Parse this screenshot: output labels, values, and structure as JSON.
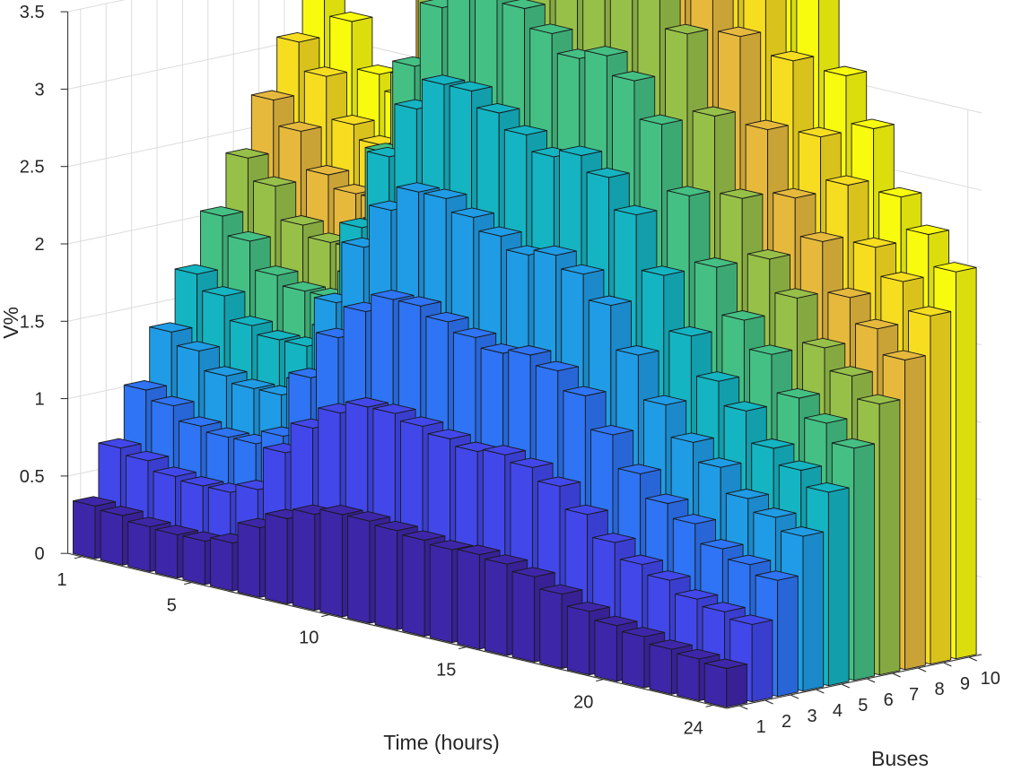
{
  "chart_data": {
    "type": "bar3",
    "title": "",
    "xlabel": "Time (hours)",
    "ylabel": "Buses",
    "zlabel": "V%",
    "x_ticks": [
      "1",
      "5",
      "10",
      "15",
      "20",
      "24"
    ],
    "y_ticks": [
      "1",
      "2",
      "3",
      "4",
      "5",
      "6",
      "7",
      "8",
      "9",
      "10"
    ],
    "z_ticks": [
      "0",
      "0.5",
      "1",
      "1.5",
      "2",
      "2.5",
      "3",
      "3.5"
    ],
    "zlim": [
      0,
      3.5
    ],
    "grid": true,
    "colormap": "parula",
    "colormap_colors": [
      "#3e26a8",
      "#4443e8",
      "#2f6bf6",
      "#2a93ed",
      "#08aed6",
      "#22bbaa",
      "#5fc466",
      "#b3be3b",
      "#f5b83d",
      "#f7e21c",
      "#f9fb0e"
    ],
    "hours": [
      1,
      2,
      3,
      4,
      5,
      6,
      7,
      8,
      9,
      10,
      11,
      12,
      13,
      14,
      15,
      16,
      17,
      18,
      19,
      20,
      21,
      22,
      23,
      24
    ],
    "base_profile": [
      0.34,
      0.32,
      0.29,
      0.28,
      0.28,
      0.31,
      0.45,
      0.55,
      0.62,
      0.66,
      0.66,
      0.64,
      0.62,
      0.6,
      0.61,
      0.59,
      0.55,
      0.48,
      0.41,
      0.36,
      0.33,
      0.29,
      0.27,
      0.25
    ],
    "bus_multipliers": [
      1,
      2,
      3,
      4,
      5,
      6,
      7,
      8,
      9,
      10
    ],
    "series_rule": "value(bus b, hour h) = base_profile[h] * b"
  }
}
